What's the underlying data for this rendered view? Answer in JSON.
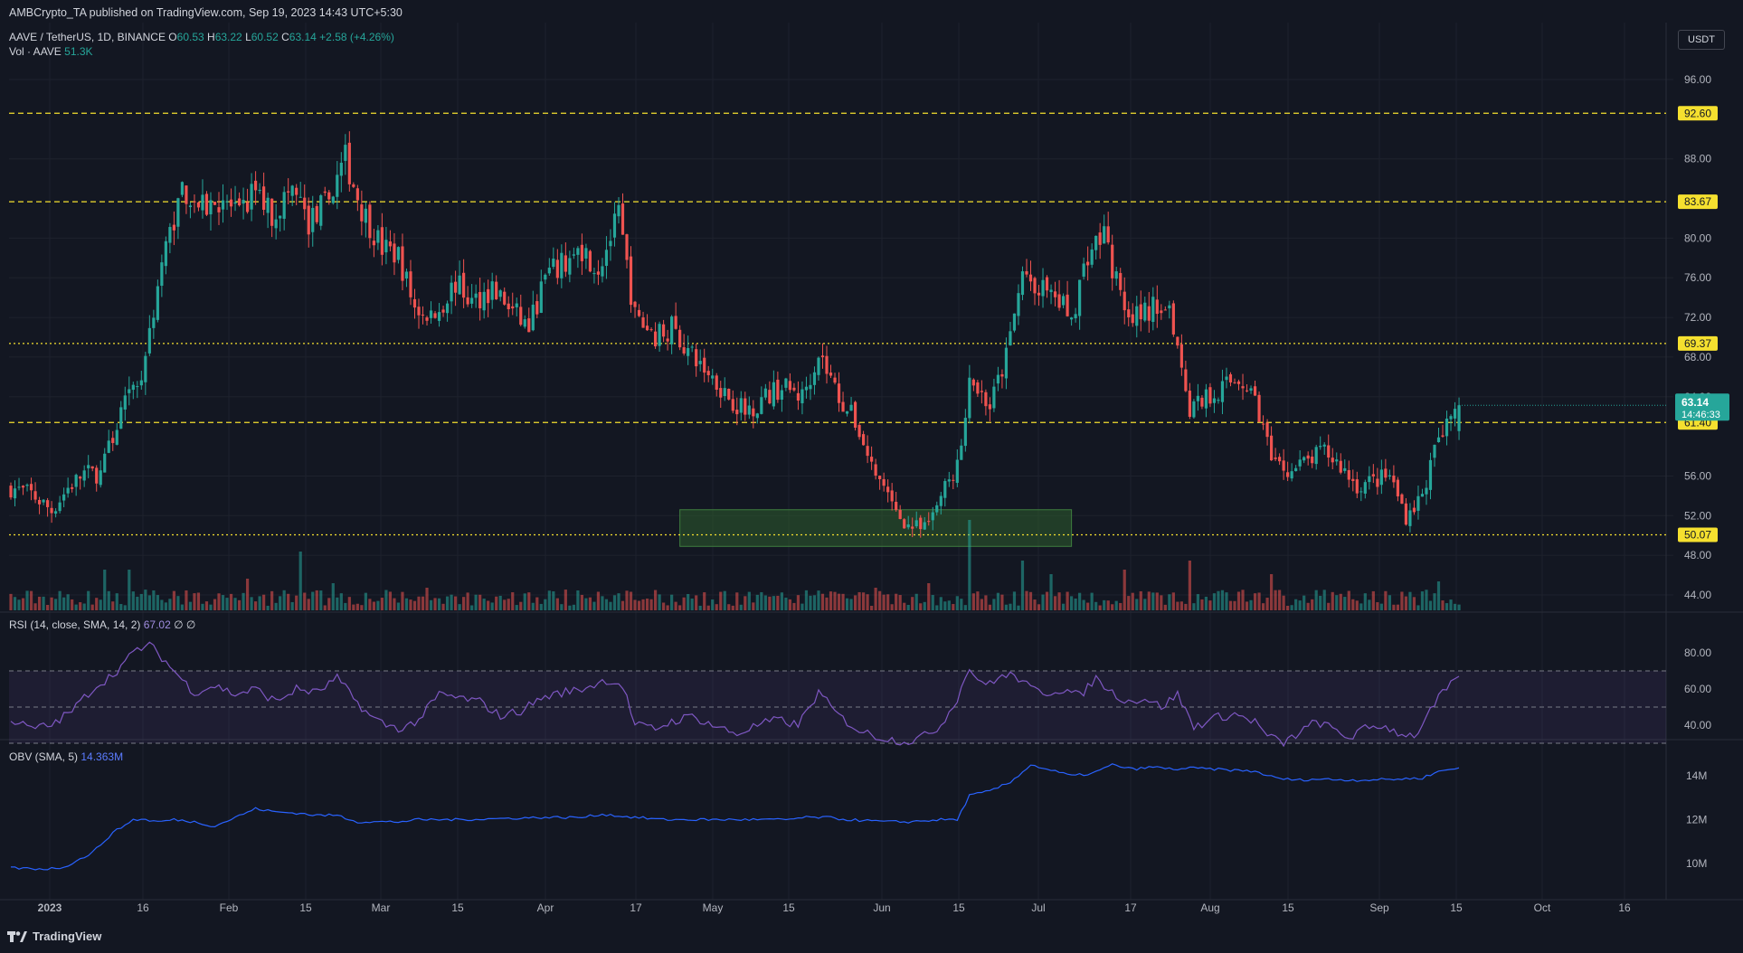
{
  "header": {
    "published": "AMBCrypto_TA published on TradingView.com, Sep 19, 2023 14:43 UTC+5:30",
    "symbol": "AAVE / TetherUS, 1D, BINANCE",
    "open_l": "O",
    "open_v": "60.53",
    "high_l": "H",
    "high_v": "63.22",
    "low_l": "L",
    "low_v": "60.52",
    "close_l": "C",
    "close_v": "63.14",
    "change": "+2.58 (+4.26%)",
    "vol_label": "Vol · AAVE",
    "vol_value": "51.3K",
    "currency": "USDT"
  },
  "rsi_label": {
    "name": "RSI (14, close, SMA, 14, 2)",
    "value": "67.02",
    "extra": "∅ ∅"
  },
  "obv_label": {
    "name": "OBV (SMA, 5)",
    "value": "14.363M"
  },
  "footer": {
    "brand": "TradingView"
  },
  "colors": {
    "up": "#26a69a",
    "down": "#ef5350",
    "level": "#f5e02f",
    "rsi": "#7e57c2",
    "obv": "#2962ff",
    "zone": "#2e5d2e"
  },
  "chart_data": [
    {
      "type": "candlestick",
      "title": "AAVE / TetherUS, 1D, BINANCE",
      "x_ticks": [
        "2023",
        "16",
        "Feb",
        "15",
        "Mar",
        "15",
        "Apr",
        "17",
        "May",
        "15",
        "Jun",
        "15",
        "Jul",
        "17",
        "Aug",
        "15",
        "Sep",
        "15",
        "Oct",
        "16"
      ],
      "y_ticks": [
        "96.00",
        "88.00",
        "80.00",
        "76.00",
        "72.00",
        "68.00",
        "64.00",
        "56.00",
        "52.00",
        "48.00",
        "44.00"
      ],
      "ylim": [
        42.5,
        99
      ],
      "price_levels": [
        {
          "value": 92.6,
          "label": "92.60",
          "style": "dashed"
        },
        {
          "value": 83.67,
          "label": "83.67",
          "style": "dashed"
        },
        {
          "value": 69.37,
          "label": "69.37",
          "style": "dotted"
        },
        {
          "value": 61.4,
          "label": "61.40",
          "style": "dashed"
        },
        {
          "value": 50.07,
          "label": "50.07",
          "style": "dotted"
        }
      ],
      "last_price": {
        "value": 63.14,
        "label": "63.14",
        "countdown": "14:46:33"
      },
      "support_zone": {
        "from": 48.9,
        "to": 52.6,
        "start_day": 164,
        "end_day": 260
      },
      "close_anchors": [
        [
          0,
          54.8
        ],
        [
          5,
          54.2
        ],
        [
          10,
          52.5
        ],
        [
          14,
          54.8
        ],
        [
          18,
          56.3
        ],
        [
          22,
          56.2
        ],
        [
          27,
          62.5
        ],
        [
          32,
          66
        ],
        [
          37,
          77.5
        ],
        [
          42,
          85
        ],
        [
          47,
          83
        ],
        [
          52,
          84
        ],
        [
          56,
          82
        ],
        [
          60,
          85
        ],
        [
          64,
          82.3
        ],
        [
          69,
          85
        ],
        [
          73,
          81.5
        ],
        [
          78,
          84
        ],
        [
          82,
          88
        ],
        [
          86,
          83
        ],
        [
          91,
          79
        ],
        [
          95,
          78.3
        ],
        [
          99,
          73
        ],
        [
          104,
          72.2
        ],
        [
          109,
          75.5
        ],
        [
          113,
          73.5
        ],
        [
          118,
          75
        ],
        [
          122,
          73
        ],
        [
          127,
          71
        ],
        [
          131,
          76
        ],
        [
          136,
          77.5
        ],
        [
          140,
          79
        ],
        [
          144,
          77
        ],
        [
          149,
          82.2
        ],
        [
          153,
          72
        ],
        [
          158,
          70.2
        ],
        [
          162,
          71
        ],
        [
          167,
          68
        ],
        [
          172,
          66
        ],
        [
          176,
          64
        ],
        [
          180,
          62.5
        ],
        [
          185,
          64
        ],
        [
          189,
          65
        ],
        [
          194,
          64
        ],
        [
          198,
          68.5
        ],
        [
          203,
          64
        ],
        [
          207,
          61.5
        ],
        [
          212,
          56
        ],
        [
          216,
          53
        ],
        [
          220,
          51
        ],
        [
          224,
          50.5
        ],
        [
          228,
          54
        ],
        [
          232,
          57
        ],
        [
          234,
          61
        ],
        [
          235,
          66
        ],
        [
          240,
          63
        ],
        [
          244,
          68
        ],
        [
          248,
          76.5
        ],
        [
          252,
          75
        ],
        [
          256,
          74
        ],
        [
          260,
          72
        ],
        [
          264,
          78.5
        ],
        [
          268,
          80.5
        ],
        [
          272,
          74
        ],
        [
          276,
          72
        ],
        [
          280,
          73
        ],
        [
          284,
          73.5
        ],
        [
          289,
          63
        ],
        [
          293,
          64
        ],
        [
          297,
          65
        ],
        [
          301,
          66
        ],
        [
          305,
          64
        ],
        [
          309,
          57.5
        ],
        [
          314,
          56.5
        ],
        [
          318,
          57.5
        ],
        [
          322,
          58.5
        ],
        [
          326,
          57
        ],
        [
          330,
          55
        ],
        [
          334,
          55.5
        ],
        [
          338,
          56
        ],
        [
          342,
          52
        ],
        [
          346,
          54
        ],
        [
          350,
          60
        ],
        [
          353,
          62.2
        ],
        [
          355,
          63.14
        ]
      ],
      "rsi": {
        "levels": [
          70,
          50,
          30
        ],
        "y_ticks": [
          "80.00",
          "60.00",
          "40.00"
        ],
        "anchors": [
          [
            0,
            43
          ],
          [
            5,
            38
          ],
          [
            10,
            40
          ],
          [
            15,
            48
          ],
          [
            20,
            60
          ],
          [
            25,
            68
          ],
          [
            28,
            75
          ],
          [
            31,
            82
          ],
          [
            34,
            84
          ],
          [
            36,
            80
          ],
          [
            40,
            70
          ],
          [
            45,
            58
          ],
          [
            50,
            62
          ],
          [
            55,
            57
          ],
          [
            60,
            60
          ],
          [
            65,
            53
          ],
          [
            70,
            60
          ],
          [
            75,
            58
          ],
          [
            80,
            66
          ],
          [
            84,
            55
          ],
          [
            88,
            45
          ],
          [
            92,
            40
          ],
          [
            96,
            38
          ],
          [
            100,
            43
          ],
          [
            105,
            57
          ],
          [
            110,
            55
          ],
          [
            115,
            53
          ],
          [
            120,
            45
          ],
          [
            125,
            48
          ],
          [
            130,
            55
          ],
          [
            135,
            58
          ],
          [
            140,
            60
          ],
          [
            146,
            65
          ],
          [
            150,
            62
          ],
          [
            153,
            40
          ],
          [
            158,
            38
          ],
          [
            162,
            42
          ],
          [
            167,
            45
          ],
          [
            172,
            40
          ],
          [
            178,
            35
          ],
          [
            183,
            40
          ],
          [
            188,
            43
          ],
          [
            193,
            40
          ],
          [
            198,
            58
          ],
          [
            203,
            45
          ],
          [
            208,
            37
          ],
          [
            212,
            34
          ],
          [
            216,
            32
          ],
          [
            220,
            31
          ],
          [
            224,
            34
          ],
          [
            228,
            40
          ],
          [
            232,
            55
          ],
          [
            235,
            72
          ],
          [
            238,
            62
          ],
          [
            242,
            66
          ],
          [
            246,
            68
          ],
          [
            250,
            60
          ],
          [
            254,
            58
          ],
          [
            258,
            60
          ],
          [
            262,
            56
          ],
          [
            266,
            66
          ],
          [
            270,
            58
          ],
          [
            274,
            53
          ],
          [
            278,
            55
          ],
          [
            282,
            50
          ],
          [
            286,
            57
          ],
          [
            290,
            39
          ],
          [
            295,
            44
          ],
          [
            300,
            46
          ],
          [
            305,
            42
          ],
          [
            308,
            34
          ],
          [
            312,
            30
          ],
          [
            316,
            36
          ],
          [
            320,
            42
          ],
          [
            324,
            38
          ],
          [
            328,
            33
          ],
          [
            332,
            38
          ],
          [
            336,
            40
          ],
          [
            340,
            36
          ],
          [
            344,
            34
          ],
          [
            346,
            40
          ],
          [
            350,
            55
          ],
          [
            353,
            62
          ],
          [
            355,
            67
          ]
        ]
      },
      "obv": {
        "y_ticks": [
          "14M",
          "12M",
          "10M"
        ],
        "anchors": [
          [
            0,
            9.8
          ],
          [
            8,
            9.75
          ],
          [
            12,
            9.8
          ],
          [
            15,
            10.0
          ],
          [
            20,
            10.5
          ],
          [
            25,
            11.4
          ],
          [
            30,
            12.0
          ],
          [
            33,
            12.0
          ],
          [
            36,
            11.9
          ],
          [
            40,
            12.0
          ],
          [
            45,
            11.9
          ],
          [
            50,
            11.7
          ],
          [
            55,
            12.1
          ],
          [
            60,
            12.5
          ],
          [
            65,
            12.35
          ],
          [
            70,
            12.3
          ],
          [
            75,
            12.2
          ],
          [
            80,
            12.2
          ],
          [
            85,
            11.9
          ],
          [
            90,
            11.9
          ],
          [
            95,
            11.9
          ],
          [
            100,
            12.0
          ],
          [
            110,
            12.0
          ],
          [
            120,
            12.05
          ],
          [
            130,
            12.1
          ],
          [
            140,
            12.1
          ],
          [
            145,
            12.25
          ],
          [
            150,
            12.15
          ],
          [
            160,
            12.0
          ],
          [
            170,
            12.0
          ],
          [
            180,
            12.0
          ],
          [
            190,
            12.0
          ],
          [
            195,
            12.1
          ],
          [
            200,
            12.1
          ],
          [
            205,
            12.0
          ],
          [
            210,
            11.95
          ],
          [
            215,
            11.9
          ],
          [
            220,
            11.9
          ],
          [
            228,
            12.0
          ],
          [
            232,
            12.0
          ],
          [
            235,
            13.1
          ],
          [
            240,
            13.3
          ],
          [
            245,
            13.7
          ],
          [
            250,
            14.5
          ],
          [
            255,
            14.25
          ],
          [
            260,
            14.0
          ],
          [
            265,
            14.1
          ],
          [
            270,
            14.5
          ],
          [
            275,
            14.3
          ],
          [
            280,
            14.4
          ],
          [
            285,
            14.3
          ],
          [
            290,
            14.35
          ],
          [
            295,
            14.3
          ],
          [
            300,
            14.25
          ],
          [
            305,
            14.2
          ],
          [
            310,
            13.9
          ],
          [
            315,
            13.8
          ],
          [
            320,
            13.85
          ],
          [
            330,
            13.8
          ],
          [
            340,
            13.85
          ],
          [
            346,
            13.9
          ],
          [
            350,
            14.2
          ],
          [
            355,
            14.363
          ]
        ]
      },
      "volume_spikes": [
        [
          235,
          1.0
        ],
        [
          248,
          0.55
        ],
        [
          273,
          0.45
        ],
        [
          289,
          0.55
        ],
        [
          309,
          0.4
        ],
        [
          255,
          0.4
        ],
        [
          29,
          0.45
        ],
        [
          23,
          0.45
        ],
        [
          71,
          0.65
        ],
        [
          79,
          0.3
        ],
        [
          58,
          0.35
        ],
        [
          102,
          0.25
        ],
        [
          139,
          0.22
        ],
        [
          350,
          0.32
        ],
        [
          212,
          0.25
        ],
        [
          225,
          0.3
        ]
      ]
    }
  ]
}
